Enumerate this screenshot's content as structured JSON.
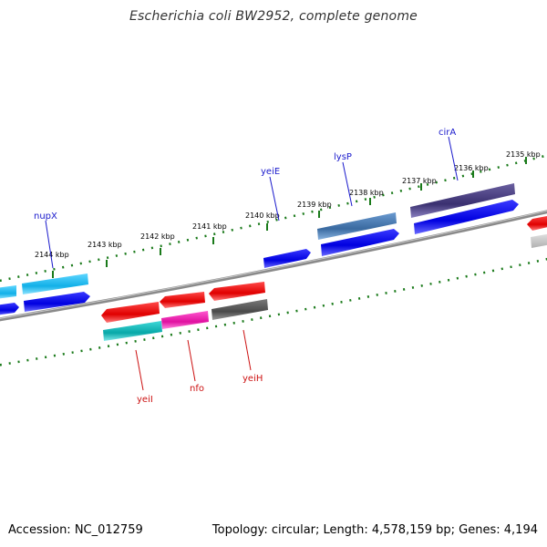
{
  "title": "Escherichia coli BW2952, complete genome",
  "footer": {
    "accession": "Accession: NC_012759",
    "topology": "Topology: circular; Length: 4,578,159 bp; Genes: 4,194"
  },
  "tick_labels": [
    "2144 kbp",
    "2143 kbp",
    "2142 kbp",
    "2141 kbp",
    "2140 kbp",
    "2139 kbp",
    "2138 kbp",
    "2137 kbp",
    "2136 kbp",
    "2135 kbp"
  ],
  "genes_top": [
    "nupX",
    "yeiE",
    "lysP",
    "cirA"
  ],
  "genes_bottom": [
    "yeiI",
    "nfo",
    "yeiH"
  ],
  "colors": {
    "forward_label": "#1a1acc",
    "reverse_label": "#cc1111",
    "tick": "#1a7a1a",
    "backbone": "#8a8a8a",
    "blue_cds": "#0a0ae6",
    "cyan": "#1ab8e8",
    "red_cds": "#e60a0a",
    "magenta": "#e61aa8",
    "teal": "#10b0b0",
    "dark_gray": "#5a5a5a",
    "steel_blue": "#4a7ab0",
    "slate": "#4a3f7a"
  }
}
